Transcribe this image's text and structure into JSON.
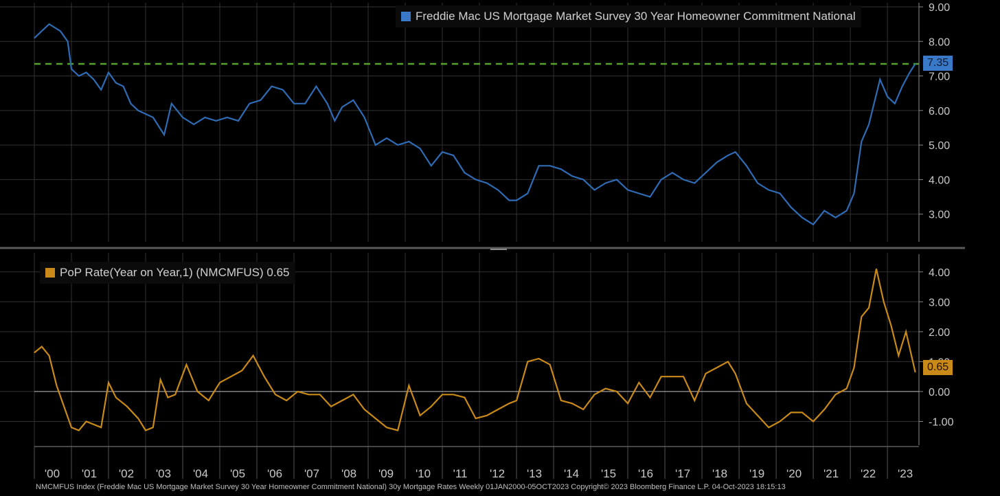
{
  "footer_text": "NMCMFUS Index (Freddie Mac US Mortgage Market Survey 30 Year Homeowner Commitment National) 30y Mortgage Rates  Weekly 01JAN2000-05OCT2023 Copyright© 2023 Bloomberg Finance L.P.  04-Oct-2023 18:15:13",
  "colors": {
    "top_series": "#2f6cb5",
    "bottom_series": "#c98a1a",
    "reference_line": "#5aa02c",
    "grid": "#3a3a3a",
    "axis": "#8a8a8a"
  },
  "chart_data": [
    {
      "type": "line",
      "series": [
        {
          "name": "Freddie Mac US Mortgage Market Survey 30 Year Homeowner Commitment National",
          "x": [
            2000.0,
            2000.2,
            2000.4,
            2000.7,
            2000.9,
            2001.0,
            2001.2,
            2001.4,
            2001.6,
            2001.8,
            2002.0,
            2002.2,
            2002.4,
            2002.6,
            2002.8,
            2003.0,
            2003.2,
            2003.5,
            2003.7,
            2004.0,
            2004.3,
            2004.6,
            2004.9,
            2005.2,
            2005.5,
            2005.8,
            2006.1,
            2006.4,
            2006.7,
            2007.0,
            2007.3,
            2007.6,
            2007.9,
            2008.1,
            2008.3,
            2008.6,
            2008.9,
            2009.2,
            2009.5,
            2009.8,
            2010.1,
            2010.4,
            2010.7,
            2011.0,
            2011.3,
            2011.6,
            2011.9,
            2012.2,
            2012.5,
            2012.8,
            2013.0,
            2013.3,
            2013.6,
            2013.9,
            2014.2,
            2014.5,
            2014.8,
            2015.1,
            2015.4,
            2015.7,
            2016.0,
            2016.3,
            2016.6,
            2016.9,
            2017.2,
            2017.5,
            2017.8,
            2018.1,
            2018.4,
            2018.7,
            2018.9,
            2019.2,
            2019.5,
            2019.8,
            2020.1,
            2020.4,
            2020.7,
            2021.0,
            2021.3,
            2021.6,
            2021.9,
            2022.1,
            2022.3,
            2022.5,
            2022.8,
            2023.0,
            2023.2,
            2023.4,
            2023.6,
            2023.75
          ],
          "values": [
            8.1,
            8.3,
            8.5,
            8.3,
            8.0,
            7.2,
            7.0,
            7.1,
            6.9,
            6.6,
            7.1,
            6.8,
            6.7,
            6.2,
            6.0,
            5.9,
            5.8,
            5.3,
            6.2,
            5.8,
            5.6,
            5.8,
            5.7,
            5.8,
            5.7,
            6.2,
            6.3,
            6.7,
            6.6,
            6.2,
            6.2,
            6.7,
            6.2,
            5.7,
            6.1,
            6.3,
            5.8,
            5.0,
            5.2,
            5.0,
            5.1,
            4.9,
            4.4,
            4.8,
            4.7,
            4.2,
            4.0,
            3.9,
            3.7,
            3.4,
            3.4,
            3.6,
            4.4,
            4.4,
            4.3,
            4.1,
            4.0,
            3.7,
            3.9,
            4.0,
            3.7,
            3.6,
            3.5,
            4.0,
            4.2,
            4.0,
            3.9,
            4.2,
            4.5,
            4.7,
            4.8,
            4.4,
            3.9,
            3.7,
            3.6,
            3.2,
            2.9,
            2.7,
            3.1,
            2.9,
            3.1,
            3.6,
            5.1,
            5.6,
            6.9,
            6.4,
            6.2,
            6.7,
            7.1,
            7.35
          ]
        }
      ],
      "ylim": [
        2.0,
        9.0
      ],
      "yticks": [
        "9.00",
        "8.00",
        "7.00",
        "6.00",
        "5.00",
        "4.00",
        "3.00"
      ],
      "reference_line": 7.35,
      "last_value_label": "7.35",
      "grid": true,
      "legend_position": "top-right"
    },
    {
      "type": "line",
      "series": [
        {
          "name": "PoP Rate(Year on Year,1) (NMCMFUS) 0.65",
          "x": [
            2000.0,
            2000.2,
            2000.4,
            2000.6,
            2000.8,
            2001.0,
            2001.2,
            2001.4,
            2001.6,
            2001.8,
            2002.0,
            2002.2,
            2002.5,
            2002.8,
            2003.0,
            2003.2,
            2003.4,
            2003.6,
            2003.8,
            2004.1,
            2004.4,
            2004.7,
            2005.0,
            2005.3,
            2005.6,
            2005.9,
            2006.2,
            2006.5,
            2006.8,
            2007.1,
            2007.4,
            2007.7,
            2008.0,
            2008.3,
            2008.6,
            2008.9,
            2009.2,
            2009.5,
            2009.8,
            2010.1,
            2010.4,
            2010.7,
            2011.0,
            2011.3,
            2011.6,
            2011.9,
            2012.2,
            2012.5,
            2012.8,
            2013.0,
            2013.3,
            2013.6,
            2013.9,
            2014.2,
            2014.5,
            2014.8,
            2015.1,
            2015.4,
            2015.7,
            2016.0,
            2016.3,
            2016.6,
            2016.9,
            2017.2,
            2017.5,
            2017.8,
            2018.1,
            2018.4,
            2018.7,
            2018.9,
            2019.2,
            2019.5,
            2019.8,
            2020.1,
            2020.4,
            2020.7,
            2021.0,
            2021.3,
            2021.6,
            2021.9,
            2022.1,
            2022.3,
            2022.5,
            2022.7,
            2022.9,
            2023.1,
            2023.3,
            2023.5,
            2023.75
          ],
          "values": [
            1.3,
            1.5,
            1.2,
            0.2,
            -0.5,
            -1.2,
            -1.3,
            -1.0,
            -1.1,
            -1.2,
            0.3,
            -0.2,
            -0.5,
            -0.9,
            -1.3,
            -1.2,
            0.4,
            -0.2,
            -0.1,
            0.9,
            0.0,
            -0.3,
            0.3,
            0.5,
            0.7,
            1.2,
            0.5,
            -0.1,
            -0.3,
            0.0,
            -0.1,
            -0.1,
            -0.5,
            -0.3,
            -0.1,
            -0.6,
            -0.9,
            -1.2,
            -1.3,
            0.2,
            -0.8,
            -0.5,
            -0.1,
            -0.1,
            -0.2,
            -0.9,
            -0.8,
            -0.6,
            -0.4,
            -0.3,
            1.0,
            1.1,
            0.9,
            -0.3,
            -0.4,
            -0.6,
            -0.1,
            0.1,
            0.0,
            -0.4,
            0.3,
            -0.2,
            0.5,
            0.5,
            0.5,
            -0.3,
            0.6,
            0.8,
            1.0,
            0.6,
            -0.4,
            -0.8,
            -1.2,
            -1.0,
            -0.7,
            -0.7,
            -1.0,
            -0.6,
            -0.1,
            0.1,
            0.8,
            2.5,
            2.8,
            4.1,
            3.0,
            2.2,
            1.2,
            2.0,
            0.65
          ]
        }
      ],
      "ylim": [
        -2.0,
        4.5
      ],
      "yticks": [
        "4.00",
        "3.00",
        "2.00",
        "1.00",
        "0.00",
        "-1.00"
      ],
      "last_value_label": "0.65",
      "grid": true,
      "legend_position": "top-left"
    }
  ],
  "x_axis": {
    "start": 2000.0,
    "end": 2023.85,
    "tick_labels": [
      "'00",
      "'01",
      "'02",
      "'03",
      "'04",
      "'05",
      "'06",
      "'07",
      "'08",
      "'09",
      "'10",
      "'11",
      "'12",
      "'13",
      "'14",
      "'15",
      "'16",
      "'17",
      "'18",
      "'19",
      "'20",
      "'21",
      "'22",
      "'23"
    ]
  }
}
